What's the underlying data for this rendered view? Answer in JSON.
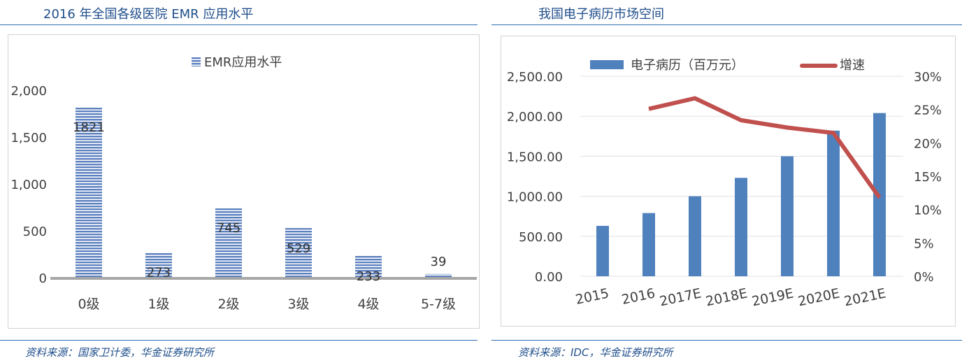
{
  "left": {
    "title": "2016 年全国各级医院 EMR 应用水平",
    "source": "资料来源：国家卫计委，华金证券研究所",
    "chart_data": {
      "type": "bar",
      "categories": [
        "0级",
        "1级",
        "2级",
        "3级",
        "4级",
        "5-7级"
      ],
      "series": [
        {
          "name": "EMR应用水平",
          "values": [
            1821,
            273,
            745,
            529,
            233,
            39
          ]
        }
      ],
      "data_labels": [
        "1821",
        "273",
        "745",
        "529",
        "233",
        "39"
      ],
      "ylim": [
        0,
        2000
      ],
      "yticks": [
        0,
        500,
        1000,
        1500,
        2000
      ],
      "ytick_labels": [
        "0",
        "500",
        "1,000",
        "1,500",
        "2,000"
      ],
      "legend": "top-center",
      "grid": false,
      "colors": {
        "bar": "#5b7fbf",
        "stripe": "#ffffff",
        "axis": "#a6a6a6"
      }
    }
  },
  "right": {
    "title": "我国电子病历市场空间",
    "source": "资料来源：IDC，华金证券研究所",
    "chart_data": {
      "type": "bar",
      "categories": [
        "2015",
        "2016",
        "2017E",
        "2018E",
        "2019E",
        "2020E",
        "2021E"
      ],
      "series": [
        {
          "name": "电子病历（百万元）",
          "type": "bar",
          "axis": "left",
          "values": [
            630,
            790,
            1000,
            1230,
            1500,
            1820,
            2040
          ]
        },
        {
          "name": "增速",
          "type": "line",
          "axis": "right",
          "values": [
            null,
            25.1,
            26.7,
            23.4,
            22.3,
            21.5,
            11.8
          ]
        }
      ],
      "ylim_left": [
        0,
        2500
      ],
      "yticks_left": [
        0,
        500,
        1000,
        1500,
        2000,
        2500
      ],
      "ytick_labels_left": [
        "0.00",
        "500.00",
        "1,000.00",
        "1,500.00",
        "2,000.00",
        "2,500.00"
      ],
      "ylim_right": [
        0,
        30
      ],
      "yticks_right": [
        0,
        5,
        10,
        15,
        20,
        25,
        30
      ],
      "ytick_labels_right": [
        "0%",
        "5%",
        "10%",
        "15%",
        "20%",
        "25%",
        "30%"
      ],
      "legend": "top-center",
      "grid": true,
      "colors": {
        "bar": "#4f81bd",
        "line": "#c0504d",
        "grid": "#e0e0e0"
      }
    }
  }
}
